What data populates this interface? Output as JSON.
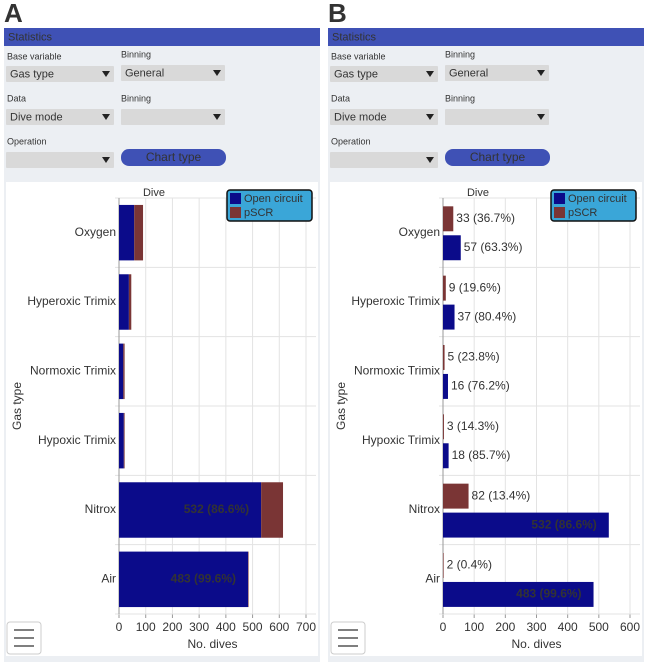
{
  "panels": [
    {
      "letter": "A",
      "header": "Statistics",
      "controls": {
        "base_variable_label": "Base variable",
        "base_variable": "Gas type",
        "binning_label": "Binning",
        "binning": "General",
        "data_label": "Data",
        "data": "Dive mode",
        "binning2_label": "Binning",
        "operation_label": "Operation",
        "button": "Chart type"
      },
      "chart_data": {
        "type": "bar",
        "orientation": "horizontal",
        "stacked": true,
        "title": "Dive",
        "ylabel": "Gas type",
        "xlabel": "No. dives",
        "categories": [
          "Oxygen",
          "Hyperoxic Trimix",
          "Normoxic Trimix",
          "Hypoxic Trimix",
          "Nitrox",
          "Air"
        ],
        "series": [
          {
            "name": "Open circuit",
            "color": "#0b0b8a",
            "values": [
              57,
              37,
              16,
              18,
              532,
              483
            ],
            "value_labels": [
              null,
              null,
              null,
              null,
              "532 (86.6%)",
              "483 (99.6%)"
            ]
          },
          {
            "name": "pSCR",
            "color": "#7a3535",
            "values": [
              33,
              9,
              5,
              3,
              82,
              2
            ]
          }
        ],
        "xlim": [
          0,
          700
        ],
        "xticks": [
          0,
          100,
          200,
          300,
          400,
          500,
          600,
          700
        ],
        "grid": true,
        "legend": "top-right"
      }
    },
    {
      "letter": "B",
      "header": "Statistics",
      "controls": {
        "base_variable_label": "Base variable",
        "base_variable": "Gas type",
        "binning_label": "Binning",
        "binning": "General",
        "data_label": "Data",
        "data": "Dive mode",
        "binning2_label": "Binning",
        "operation_label": "Operation",
        "button": "Chart type"
      },
      "chart_data": {
        "type": "bar",
        "orientation": "horizontal",
        "stacked": false,
        "title": "Dive",
        "ylabel": "Gas type",
        "xlabel": "No. dives",
        "categories": [
          "Oxygen",
          "Hyperoxic Trimix",
          "Normoxic Trimix",
          "Hypoxic Trimix",
          "Nitrox",
          "Air"
        ],
        "series": [
          {
            "name": "Open circuit",
            "color": "#0b0b8a",
            "values": [
              57,
              37,
              16,
              18,
              532,
              483
            ],
            "value_labels": [
              "57 (63.3%)",
              "37 (80.4%)",
              "16 (76.2%)",
              "18 (85.7%)",
              "532 (86.6%)",
              "483 (99.6%)"
            ]
          },
          {
            "name": "pSCR",
            "color": "#7a3535",
            "values": [
              33,
              9,
              5,
              3,
              82,
              2
            ],
            "value_labels": [
              "33 (36.7%)",
              "9 (19.6%)",
              "5 (23.8%)",
              "3 (14.3%)",
              "82 (13.4%)",
              "2 (0.4%)"
            ]
          }
        ],
        "xlim": [
          0,
          600
        ],
        "xticks": [
          0,
          100,
          200,
          300,
          400,
          500,
          600
        ],
        "grid": true,
        "legend": "top-right"
      }
    }
  ]
}
